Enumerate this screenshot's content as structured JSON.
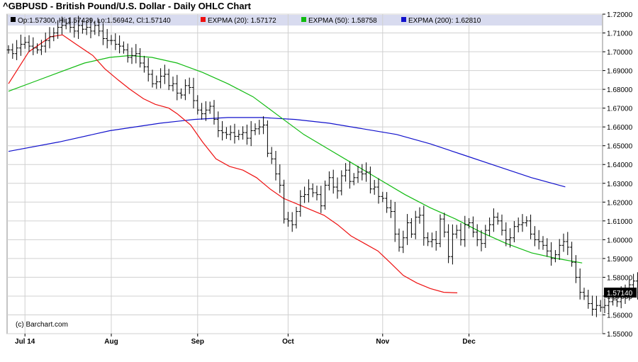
{
  "chart_data": {
    "type": "ohlc",
    "title": "^GBPUSD - British Pound/U.S. Dollar - Daily OHLC Chart",
    "legend": {
      "ohlc": "Op:1.57300, Hi:1.57439, Lo:1.56942, Cl:1.57140",
      "ema20": "EXPMA (20): 1.57172",
      "ema50": "EXPMA (50): 1.58758",
      "ema200": "EXPMA (200): 1.62810"
    },
    "colors": {
      "ema20": "#ee1111",
      "ema50": "#11bb11",
      "ema200": "#1111cc",
      "ohlc": "#000000",
      "legend_bg": "#d8dbef",
      "last_tag_bg": "#000000"
    },
    "watermark": "(c) Barchart.com",
    "last_price_label": "1.57140",
    "ylim": [
      1.55,
      1.72
    ],
    "y_ticks": [
      "1.55000",
      "1.56000",
      "1.57000",
      "1.58000",
      "1.59000",
      "1.60000",
      "1.61000",
      "1.62000",
      "1.63000",
      "1.64000",
      "1.65000",
      "1.66000",
      "1.67000",
      "1.68000",
      "1.69000",
      "1.70000",
      "1.71000",
      "1.72000"
    ],
    "x_labels": [
      {
        "label": "Jul 14",
        "bar": 4
      },
      {
        "label": "Aug",
        "bar": 25
      },
      {
        "label": "Sep",
        "bar": 46
      },
      {
        "label": "Oct",
        "bar": 68
      },
      {
        "label": "Nov",
        "bar": 91
      },
      {
        "label": "Dec",
        "bar": 112
      }
    ],
    "closes": [
      1.701,
      1.699,
      1.702,
      1.704,
      1.705,
      1.703,
      1.702,
      1.701,
      1.703,
      1.706,
      1.708,
      1.71,
      1.713,
      1.714,
      1.715,
      1.713,
      1.711,
      1.714,
      1.712,
      1.713,
      1.711,
      1.714,
      1.711,
      1.707,
      1.706,
      1.706,
      1.704,
      1.703,
      1.701,
      1.697,
      1.698,
      1.699,
      1.694,
      1.692,
      1.688,
      1.683,
      1.684,
      1.687,
      1.688,
      1.682,
      1.683,
      1.678,
      1.677,
      1.682,
      1.681,
      1.674,
      1.669,
      1.667,
      1.669,
      1.671,
      1.664,
      1.658,
      1.657,
      1.656,
      1.657,
      1.655,
      1.656,
      1.657,
      1.654,
      1.658,
      1.659,
      1.66,
      1.661,
      1.646,
      1.643,
      1.635,
      1.629,
      1.611,
      1.61,
      1.608,
      1.615,
      1.623,
      1.624,
      1.627,
      1.625,
      1.624,
      1.618,
      1.629,
      1.633,
      1.628,
      1.626,
      1.634,
      1.637,
      1.631,
      1.633,
      1.636,
      1.635,
      1.636,
      1.627,
      1.628,
      1.623,
      1.622,
      1.617,
      1.615,
      1.603,
      1.596,
      1.601,
      1.609,
      1.603,
      1.612,
      1.613,
      1.601,
      1.599,
      1.6,
      1.598,
      1.611,
      1.604,
      1.591,
      1.603,
      1.605,
      1.6,
      1.608,
      1.609,
      1.604,
      1.6,
      1.598,
      1.605,
      1.608,
      1.612,
      1.61,
      1.605,
      1.6,
      1.601,
      1.607,
      1.608,
      1.609,
      1.61,
      1.603,
      1.6,
      1.599,
      1.597,
      1.594,
      1.59,
      1.592,
      1.597,
      1.599,
      1.596,
      1.588,
      1.58,
      1.572,
      1.57,
      1.566,
      1.563,
      1.565,
      1.564,
      1.565,
      1.567,
      1.568,
      1.567,
      1.571,
      1.57,
      1.576,
      1.578,
      1.572,
      1.573,
      1.57,
      1.566,
      1.568,
      1.571,
      1.563,
      1.56,
      1.566,
      1.568,
      1.57,
      1.573,
      1.575,
      1.5714
    ],
    "ema20": [
      [
        0,
        1.683
      ],
      [
        12,
        1.7
      ],
      [
        25,
        1.708
      ],
      [
        32,
        1.709
      ],
      [
        40,
        1.704
      ],
      [
        50,
        1.698
      ],
      [
        57,
        1.691
      ],
      [
        65,
        1.685
      ],
      [
        72,
        1.68
      ],
      [
        80,
        1.675
      ],
      [
        87,
        1.672
      ],
      [
        95,
        1.67
      ],
      [
        100,
        1.667
      ],
      [
        108,
        1.661
      ],
      [
        115,
        1.652
      ],
      [
        123,
        1.643
      ],
      [
        131,
        1.639
      ],
      [
        139,
        1.637
      ],
      [
        147,
        1.633
      ],
      [
        155,
        1.627
      ],
      [
        163,
        1.622
      ],
      [
        171,
        1.619
      ],
      [
        179,
        1.616
      ],
      [
        187,
        1.613
      ],
      [
        195,
        1.608
      ],
      [
        203,
        1.602
      ],
      [
        211,
        1.598
      ],
      [
        219,
        1.594
      ],
      [
        226,
        1.588
      ],
      [
        234,
        1.581
      ],
      [
        242,
        1.577
      ],
      [
        250,
        1.574
      ],
      [
        258,
        1.572
      ],
      [
        266,
        1.5717
      ]
    ],
    "ema50": [
      [
        0,
        1.679
      ],
      [
        15,
        1.684
      ],
      [
        30,
        1.689
      ],
      [
        45,
        1.694
      ],
      [
        60,
        1.697
      ],
      [
        72,
        1.698
      ],
      [
        85,
        1.697
      ],
      [
        100,
        1.694
      ],
      [
        115,
        1.689
      ],
      [
        130,
        1.683
      ],
      [
        145,
        1.676
      ],
      [
        160,
        1.666
      ],
      [
        175,
        1.656
      ],
      [
        190,
        1.648
      ],
      [
        205,
        1.64
      ],
      [
        220,
        1.632
      ],
      [
        235,
        1.624
      ],
      [
        250,
        1.617
      ],
      [
        265,
        1.611
      ],
      [
        280,
        1.604
      ],
      [
        295,
        1.598
      ],
      [
        310,
        1.593
      ],
      [
        325,
        1.59
      ],
      [
        340,
        1.5876
      ]
    ],
    "ema200": [
      [
        0,
        1.647
      ],
      [
        30,
        1.652
      ],
      [
        60,
        1.658
      ],
      [
        90,
        1.662
      ],
      [
        110,
        1.664
      ],
      [
        130,
        1.665
      ],
      [
        150,
        1.665
      ],
      [
        170,
        1.664
      ],
      [
        190,
        1.662
      ],
      [
        210,
        1.659
      ],
      [
        230,
        1.656
      ],
      [
        250,
        1.651
      ],
      [
        270,
        1.645
      ],
      [
        290,
        1.639
      ],
      [
        310,
        1.633
      ],
      [
        330,
        1.6281
      ]
    ]
  }
}
